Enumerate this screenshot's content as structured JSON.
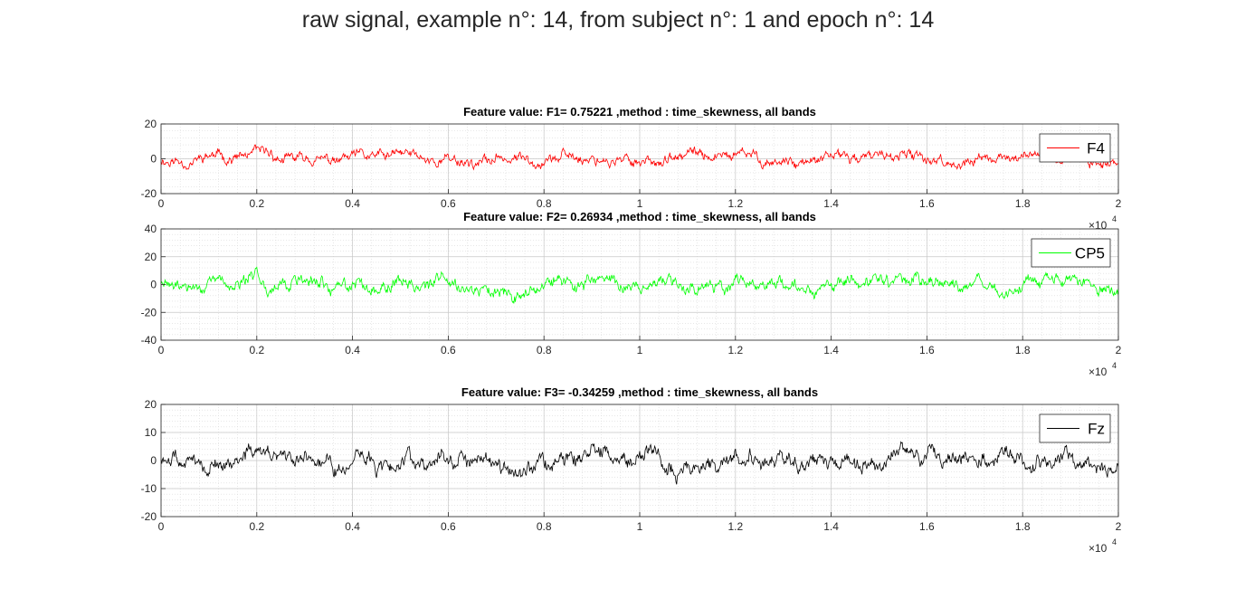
{
  "figure": {
    "title": "raw signal, example n°: 14, from subject n°: 1 and epoch n°: 14"
  },
  "chart_data": [
    {
      "type": "line",
      "title": "Feature value: F1= 0.75221 ,method : time_skewness, all bands",
      "xlabel": "",
      "ylabel": "",
      "xlim": [
        0,
        20000
      ],
      "ylim": [
        -20,
        20
      ],
      "xticks": [
        0,
        2000,
        4000,
        6000,
        8000,
        10000,
        12000,
        14000,
        16000,
        18000,
        20000
      ],
      "xtick_labels": [
        "0",
        "0.2",
        "0.4",
        "0.6",
        "0.8",
        "1",
        "1.2",
        "1.4",
        "1.6",
        "1.8",
        "2"
      ],
      "yticks": [
        -20,
        0,
        20
      ],
      "ytick_labels": [
        "-20",
        "0",
        "20"
      ],
      "x_exponent_label": "×10",
      "x_exponent_power": "4",
      "grid": true,
      "minor_grid": true,
      "legend_position": "top-right",
      "series": [
        {
          "name": "F4",
          "color": "#ff0000",
          "amplitude": 4.5,
          "seed": 11
        }
      ]
    },
    {
      "type": "line",
      "title": "Feature value: F2= 0.26934 ,method : time_skewness, all bands",
      "xlabel": "",
      "ylabel": "",
      "xlim": [
        0,
        20000
      ],
      "ylim": [
        -40,
        40
      ],
      "xticks": [
        0,
        2000,
        4000,
        6000,
        8000,
        10000,
        12000,
        14000,
        16000,
        18000,
        20000
      ],
      "xtick_labels": [
        "0",
        "0.2",
        "0.4",
        "0.6",
        "0.8",
        "1",
        "1.2",
        "1.4",
        "1.6",
        "1.8",
        "2"
      ],
      "yticks": [
        -40,
        -20,
        0,
        20,
        40
      ],
      "ytick_labels": [
        "-40",
        "-20",
        "0",
        "20",
        "40"
      ],
      "x_exponent_label": "×10",
      "x_exponent_power": "4",
      "grid": true,
      "minor_grid": true,
      "legend_position": "top-right",
      "series": [
        {
          "name": "CP5",
          "color": "#00ff00",
          "amplitude": 7,
          "seed": 29
        }
      ]
    },
    {
      "type": "line",
      "title": "Feature value: F3= -0.34259 ,method : time_skewness, all bands",
      "xlabel": "",
      "ylabel": "",
      "xlim": [
        0,
        20000
      ],
      "ylim": [
        -20,
        20
      ],
      "xticks": [
        0,
        2000,
        4000,
        6000,
        8000,
        10000,
        12000,
        14000,
        16000,
        18000,
        20000
      ],
      "xtick_labels": [
        "0",
        "0.2",
        "0.4",
        "0.6",
        "0.8",
        "1",
        "1.2",
        "1.4",
        "1.6",
        "1.8",
        "2"
      ],
      "yticks": [
        -20,
        -10,
        0,
        10,
        20
      ],
      "ytick_labels": [
        "-20",
        "-10",
        "0",
        "10",
        "20"
      ],
      "x_exponent_label": "×10",
      "x_exponent_power": "4",
      "grid": true,
      "minor_grid": true,
      "legend_position": "top-right",
      "series": [
        {
          "name": "Fz",
          "color": "#000000",
          "amplitude": 4.2,
          "seed": 47
        }
      ]
    }
  ]
}
